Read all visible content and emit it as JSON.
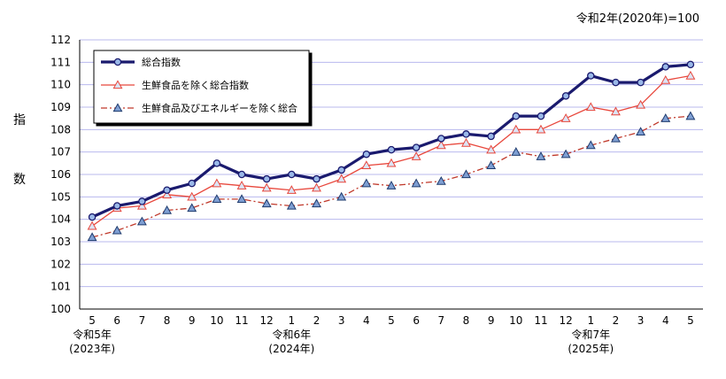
{
  "note": "令和2年(2020年)=100",
  "chart_data": {
    "type": "line",
    "ylabel": "指数",
    "ylabel_chars": [
      "指",
      "数"
    ],
    "ylim": [
      100,
      112
    ],
    "yticks": [
      100,
      101,
      102,
      103,
      104,
      105,
      106,
      107,
      108,
      109,
      110,
      111,
      112
    ],
    "grid": true,
    "legend_position": "top-left",
    "categories": [
      "5",
      "6",
      "7",
      "8",
      "9",
      "10",
      "11",
      "12",
      "1",
      "2",
      "3",
      "4",
      "5",
      "6",
      "7",
      "8",
      "9",
      "10",
      "11",
      "12",
      "1",
      "2",
      "3",
      "4",
      "5"
    ],
    "era_labels": [
      {
        "index": 0,
        "line1": "令和5年",
        "line2": "(2023年)"
      },
      {
        "index": 8,
        "line1": "令和6年",
        "line2": "(2024年)"
      },
      {
        "index": 20,
        "line1": "令和7年",
        "line2": "(2025年)"
      }
    ],
    "series": [
      {
        "name": "総合指数",
        "color": "#1a1a6e",
        "style": "thick-solid-circle",
        "values": [
          104.1,
          104.6,
          104.8,
          105.3,
          105.6,
          106.5,
          106.0,
          105.8,
          106.0,
          105.8,
          106.2,
          106.9,
          107.1,
          107.2,
          107.6,
          107.8,
          107.7,
          108.6,
          108.6,
          109.5,
          110.4,
          110.1,
          110.1,
          110.8,
          110.9
        ]
      },
      {
        "name": "生鮮食品を除く総合指数",
        "color": "#e8473c",
        "style": "thin-solid-triangle",
        "values": [
          103.7,
          104.5,
          104.6,
          105.1,
          105.0,
          105.6,
          105.5,
          105.4,
          105.3,
          105.4,
          105.8,
          106.4,
          106.5,
          106.8,
          107.3,
          107.4,
          107.1,
          108.0,
          108.0,
          108.5,
          109.0,
          108.8,
          109.1,
          110.2,
          110.4
        ]
      },
      {
        "name": "生鮮食品及びエネルギーを除く総合",
        "color": "#c0392b",
        "style": "dashdot-triangle",
        "values": [
          103.2,
          103.5,
          103.9,
          104.4,
          104.5,
          104.9,
          104.9,
          104.7,
          104.6,
          104.7,
          105.0,
          105.6,
          105.5,
          105.6,
          105.7,
          106.0,
          106.4,
          107.0,
          106.8,
          106.9,
          107.3,
          107.6,
          107.9,
          108.5,
          108.6
        ]
      }
    ]
  }
}
